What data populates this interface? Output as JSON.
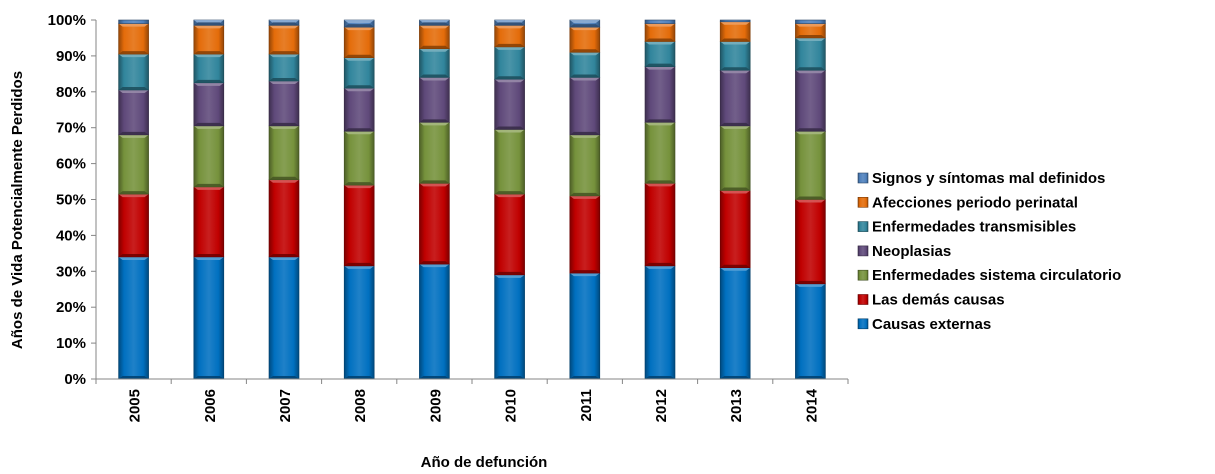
{
  "chart_data": {
    "type": "bar",
    "stacked": true,
    "normalized": true,
    "xlabel": "Año de defunción",
    "ylabel": "Años de Vida Potencialmente Perdidos",
    "categories": [
      "2005",
      "2006",
      "2007",
      "2008",
      "2009",
      "2010",
      "2011",
      "2012",
      "2013",
      "2014"
    ],
    "y_ticks": [
      "0%",
      "10%",
      "20%",
      "30%",
      "40%",
      "50%",
      "60%",
      "70%",
      "80%",
      "90%",
      "100%"
    ],
    "ylim": [
      0,
      100
    ],
    "legend_position": "right",
    "series": [
      {
        "name": "Causas externas",
        "color": "#0070C0",
        "values": [
          34,
          34,
          34,
          31.5,
          32,
          29,
          29.5,
          31.5,
          31,
          26.5
        ]
      },
      {
        "name": "Las demás causas",
        "color": "#C00000",
        "values": [
          17.5,
          19.5,
          21.5,
          22.5,
          22.5,
          22.5,
          21.5,
          23,
          21.5,
          23.5
        ]
      },
      {
        "name": "Enfermedades sistema circulatorio",
        "color": "#76923C",
        "values": [
          16.5,
          17,
          15,
          15,
          17,
          18,
          17,
          17,
          18,
          19
        ]
      },
      {
        "name": "Neoplasias",
        "color": "#5F497A",
        "values": [
          12.5,
          12,
          12.5,
          12,
          12.5,
          14,
          16,
          15.5,
          15.5,
          17
        ]
      },
      {
        "name": "Enfermedades transmisibles",
        "color": "#31859C",
        "values": [
          10,
          8,
          7.5,
          8.5,
          8,
          9,
          7,
          7,
          8,
          9
        ]
      },
      {
        "name": "Afecciones periodo perinatal",
        "color": "#E46C0A",
        "values": [
          8.5,
          8,
          8,
          8.5,
          6.5,
          6,
          7,
          5,
          5.5,
          4
        ]
      },
      {
        "name": "Signos y síntomas mal definidos",
        "color": "#4F81BD",
        "values": [
          1,
          1.5,
          1.5,
          2,
          1.5,
          1.5,
          2,
          1,
          0.5,
          1
        ]
      }
    ]
  }
}
